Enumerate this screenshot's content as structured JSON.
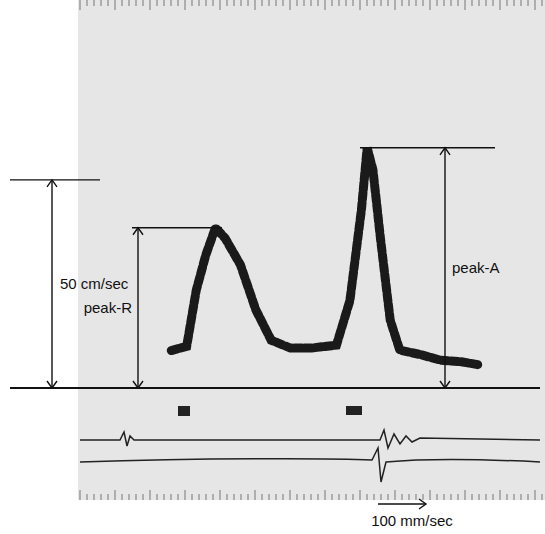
{
  "chart_data": {
    "type": "line",
    "x": [
      240,
      280,
      305,
      330,
      355,
      380,
      420,
      460,
      500,
      550,
      605,
      670,
      705,
      735,
      750,
      765,
      785,
      810,
      835,
      890,
      940,
      995,
      1045
    ],
    "values": [
      9,
      10,
      23.5,
      32,
      38.5,
      36,
      29.6,
      18.8,
      11.5,
      9.6,
      9.6,
      10.3,
      21,
      42.8,
      57.7,
      52.4,
      35.6,
      16.3,
      9.1,
      8,
      6.7,
      6.3,
      5.5
    ],
    "color": "#1a1a1a",
    "xlim": [
      -180,
      1200
    ],
    "ylim": [
      0,
      80
    ],
    "tick_labels": false,
    "scale_bar": {
      "value": 50,
      "label": "50 cm/sec"
    },
    "peaks": [
      {
        "label": "peak-R",
        "value": 38.5
      },
      {
        "label": "peak-A",
        "value": 57.7
      }
    ],
    "sweep_label": "100 mm/sec"
  }
}
